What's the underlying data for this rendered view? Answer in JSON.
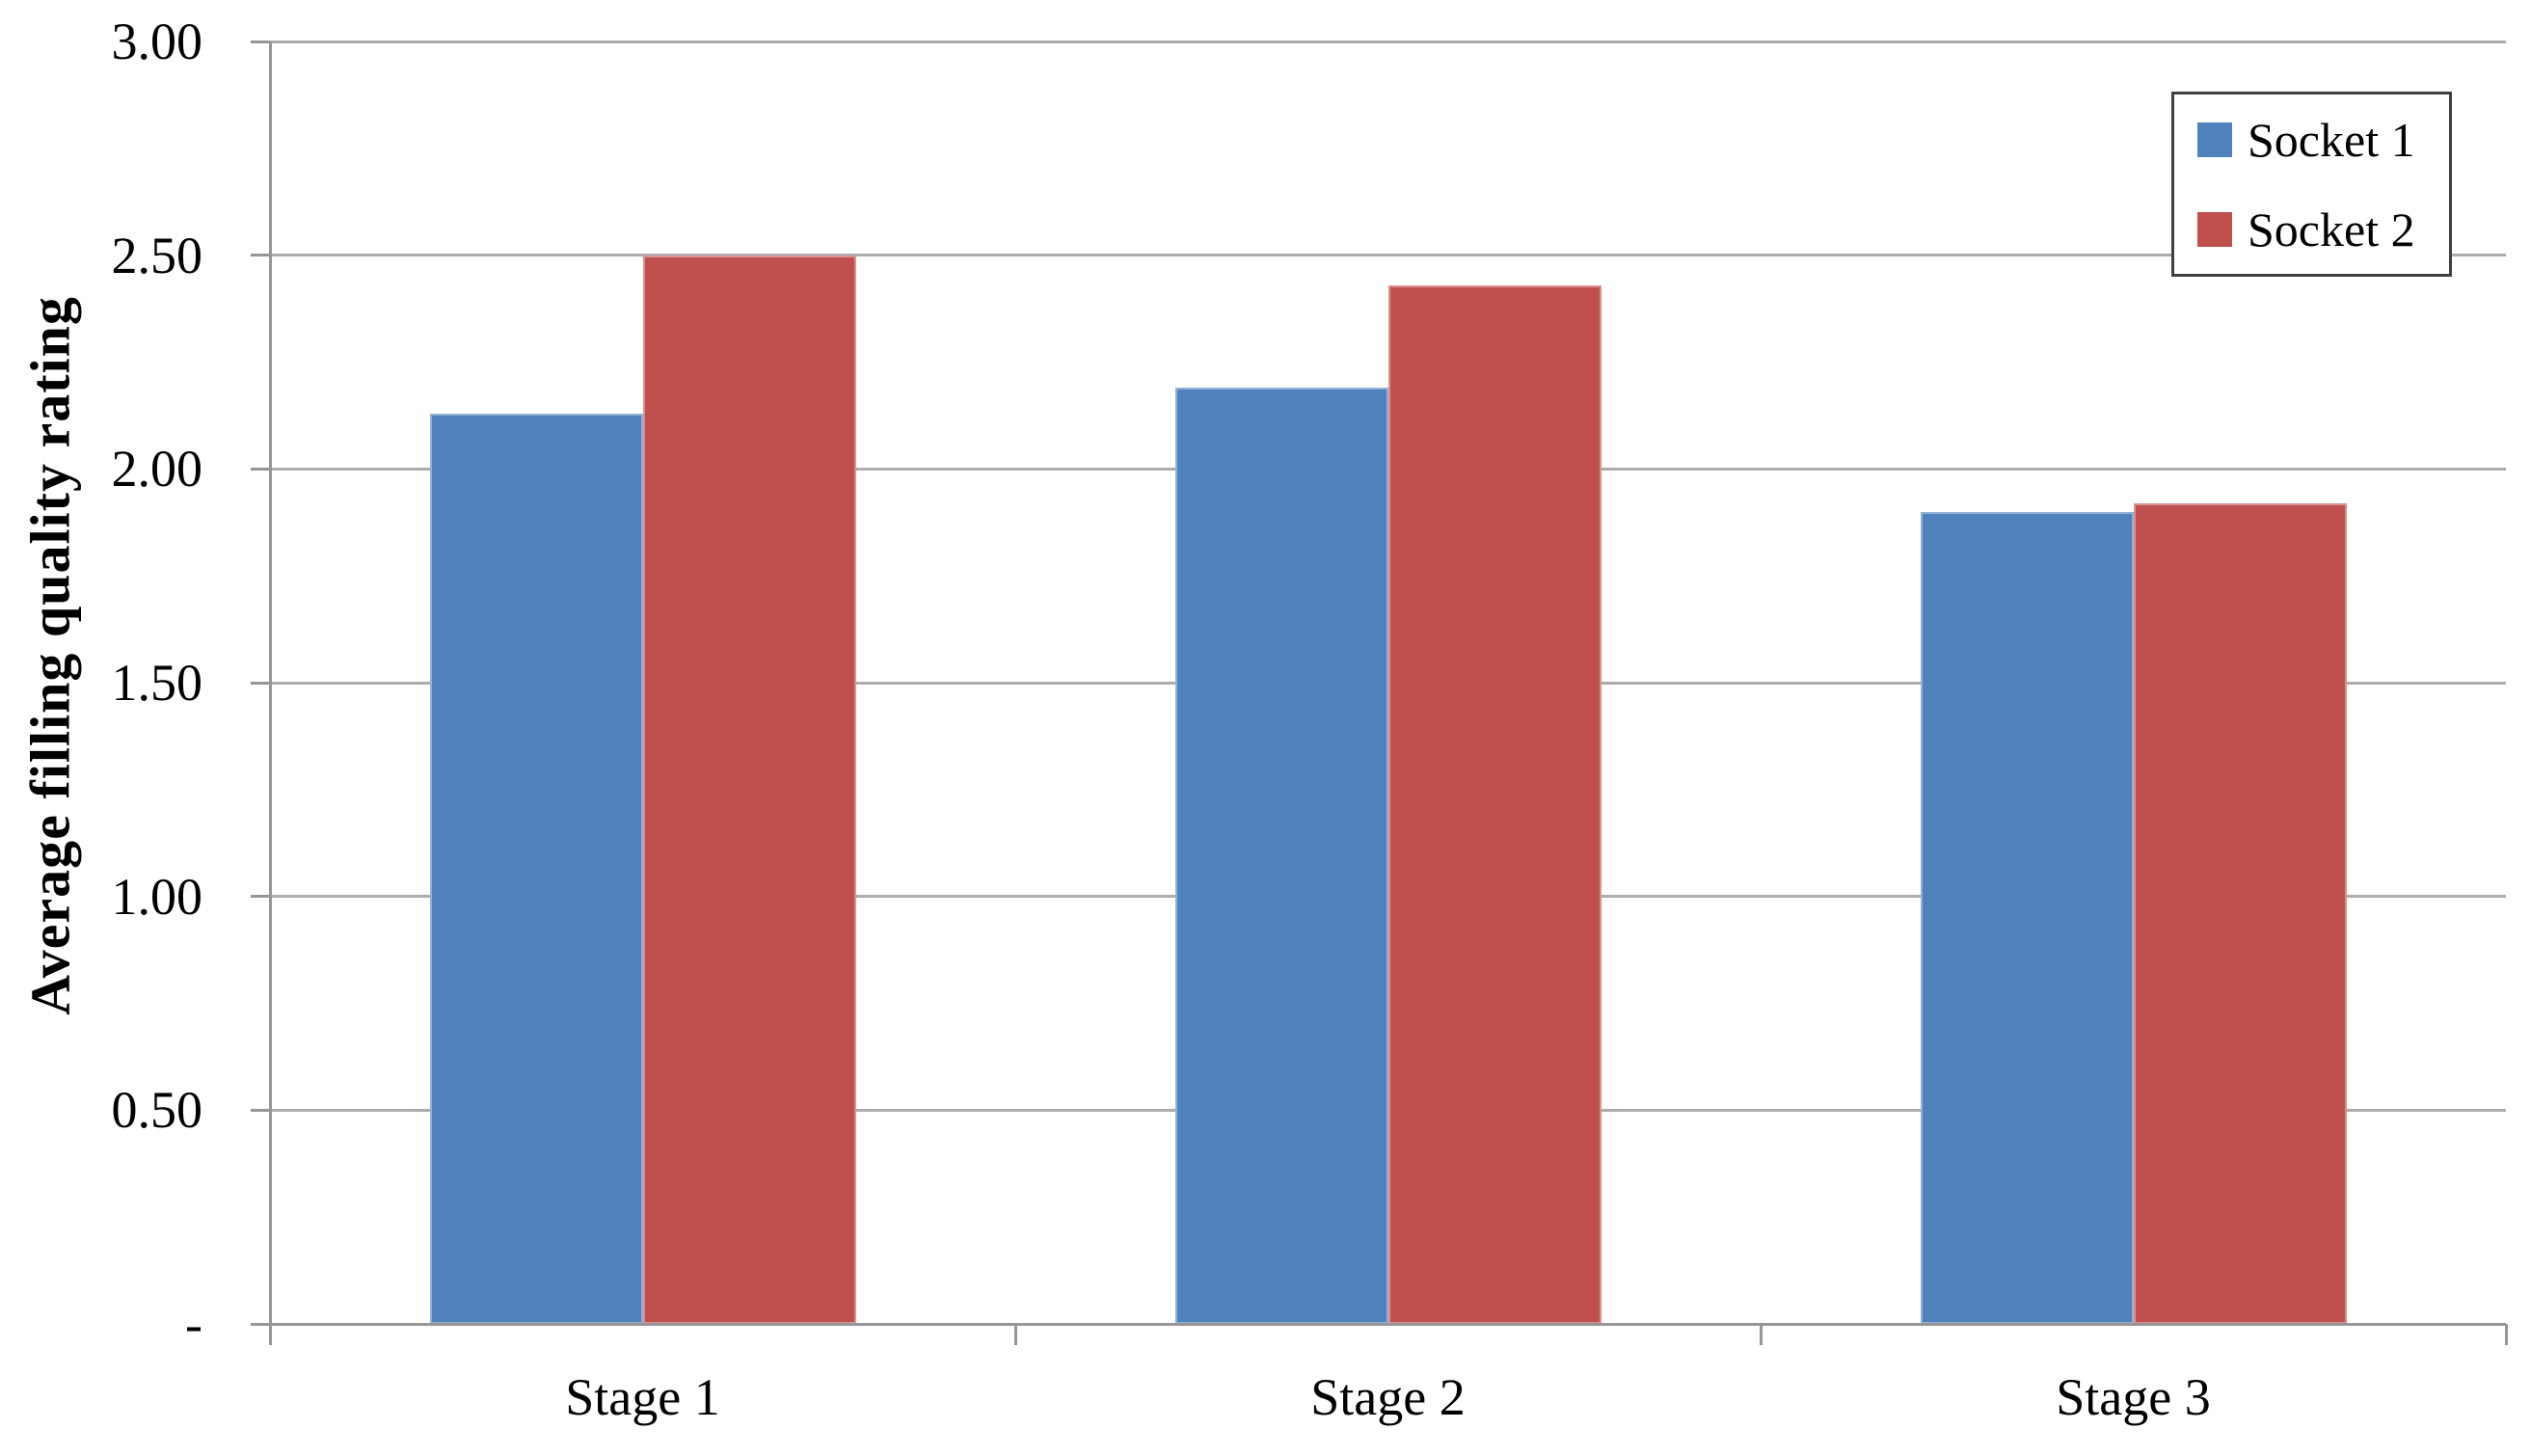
{
  "chart_data": {
    "type": "bar",
    "title": "",
    "categories": [
      "Stage 1",
      "Stage 2",
      "Stage 3"
    ],
    "series": [
      {
        "name": "Socket 1",
        "color": "#4F81BD",
        "values": [
          2.13,
          2.19,
          1.9
        ]
      },
      {
        "name": "Socket 2",
        "color": "#C0504D",
        "values": [
          2.5,
          2.43,
          1.92
        ]
      }
    ],
    "xlabel": "",
    "ylabel": "Average filling quality rating",
    "ylim": [
      0,
      3
    ],
    "ytick_step": 0.5,
    "ytick_labels": [
      "3.00",
      "2.50",
      "2.00",
      "1.50",
      "1.00",
      "0.50",
      "-"
    ],
    "grid": true,
    "legend": {
      "position": "top-right",
      "entries": [
        "Socket 1",
        "Socket 2"
      ]
    },
    "colors": {
      "gridline": "#ACACAC",
      "axis": "#969696",
      "legend_border": "#404040",
      "text": "#000000",
      "background": "#FFFFFF"
    }
  }
}
